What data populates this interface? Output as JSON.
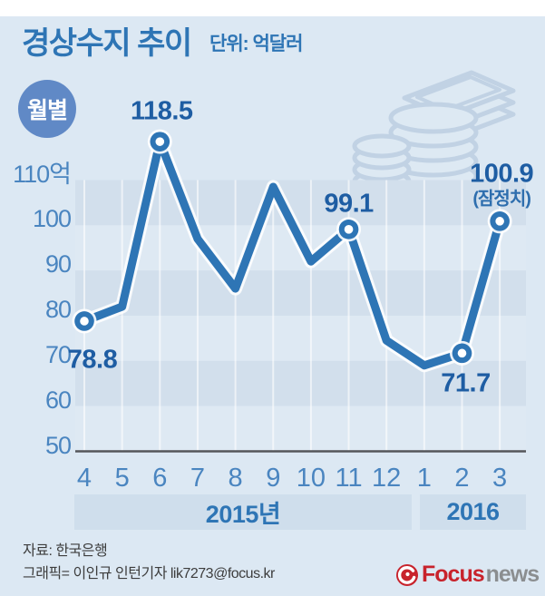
{
  "header": {
    "title": "경상수지 추이",
    "unit": "단위: 억달러",
    "badge": "월별"
  },
  "chart_data": {
    "type": "line",
    "title": "경상수지 추이",
    "unit": "억달러",
    "x_categories": [
      "4",
      "5",
      "6",
      "7",
      "8",
      "9",
      "10",
      "11",
      "12",
      "1",
      "2",
      "3"
    ],
    "series": [
      {
        "name": "경상수지",
        "values": [
          78.8,
          82,
          118.5,
          97,
          86,
          108.5,
          92,
          99.1,
          74.5,
          69,
          71.7,
          100.9
        ]
      }
    ],
    "labeled_points": [
      {
        "index": 0,
        "text": "78.8"
      },
      {
        "index": 2,
        "text": "118.5"
      },
      {
        "index": 7,
        "text": "99.1"
      },
      {
        "index": 10,
        "text": "71.7"
      },
      {
        "index": 11,
        "text": "100.9",
        "note": "(잠정치)"
      }
    ],
    "estimated_indices": [
      1,
      3,
      4,
      5,
      6,
      8,
      9
    ],
    "yticks": [
      {
        "label": "110억",
        "value": 110
      },
      {
        "label": "100",
        "value": 100
      },
      {
        "label": "90",
        "value": 90
      },
      {
        "label": "80",
        "value": 80
      },
      {
        "label": "70",
        "value": 70
      },
      {
        "label": "60",
        "value": 60
      },
      {
        "label": "50",
        "value": 50
      }
    ],
    "ylim": [
      50,
      122
    ],
    "grid": "horizontal-stripes + vertical-month-lines",
    "legend": "none",
    "year_groups": [
      {
        "label": "2015년",
        "from": "4",
        "to": "12"
      },
      {
        "label": "2016",
        "from": "1",
        "to": "3"
      }
    ],
    "colors": {
      "line": "#2e75b5",
      "data_label": "#1e5da3",
      "tick_label": "#4a85c0",
      "stripe_dark": "#d2dfec",
      "stripe_light": "#dee9f3",
      "year_band": "#cfdeec",
      "axis": "#54565a",
      "background": "#dce8f3",
      "badge": "#6089c6"
    }
  },
  "footer": {
    "source": "자료: 한국은행",
    "credit": "그래픽= 이인규 인턴기자 lik7273@focus.kr",
    "logo_focus": "Focus",
    "logo_news": "news"
  }
}
